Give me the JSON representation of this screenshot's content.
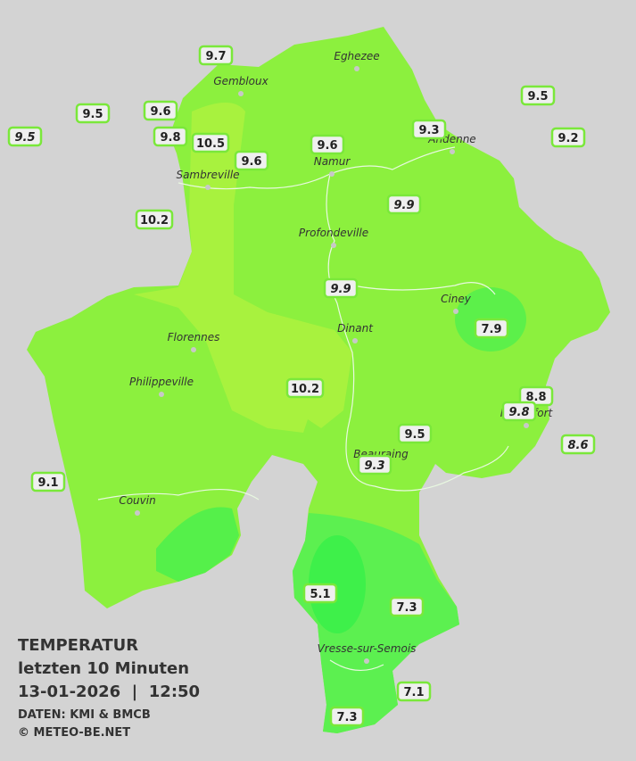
{
  "legend": {
    "title": "TEMPERATUR",
    "period": "letzten 10 Minuten",
    "datetime": "13-01-2026  |  12:50",
    "source": "DATEN: KMI & BMCB",
    "copyright": "© METEO-BE.NET"
  },
  "cities": [
    "Eghezee",
    "Gembloux",
    "Andenne",
    "Namur",
    "Sambreville",
    "Profondeville",
    "Ciney",
    "Dinant",
    "Florennes",
    "Philippeville",
    "Rochefort",
    "Beauraing",
    "Couvin",
    "Vresse-sur-Semois"
  ],
  "stations": [
    "9.7",
    "9.5",
    "9.6",
    "9.5",
    "9.8",
    "10.5",
    "9.6",
    "9.6",
    "9.3",
    "9.5",
    "9.2",
    "10.2",
    "9.9",
    "9.9",
    "7.9",
    "10.2",
    "8.8",
    "9.8",
    "8.6",
    "9.5",
    "9.3",
    "9.1",
    "5.1",
    "7.3",
    "7.1",
    "7.3"
  ]
}
